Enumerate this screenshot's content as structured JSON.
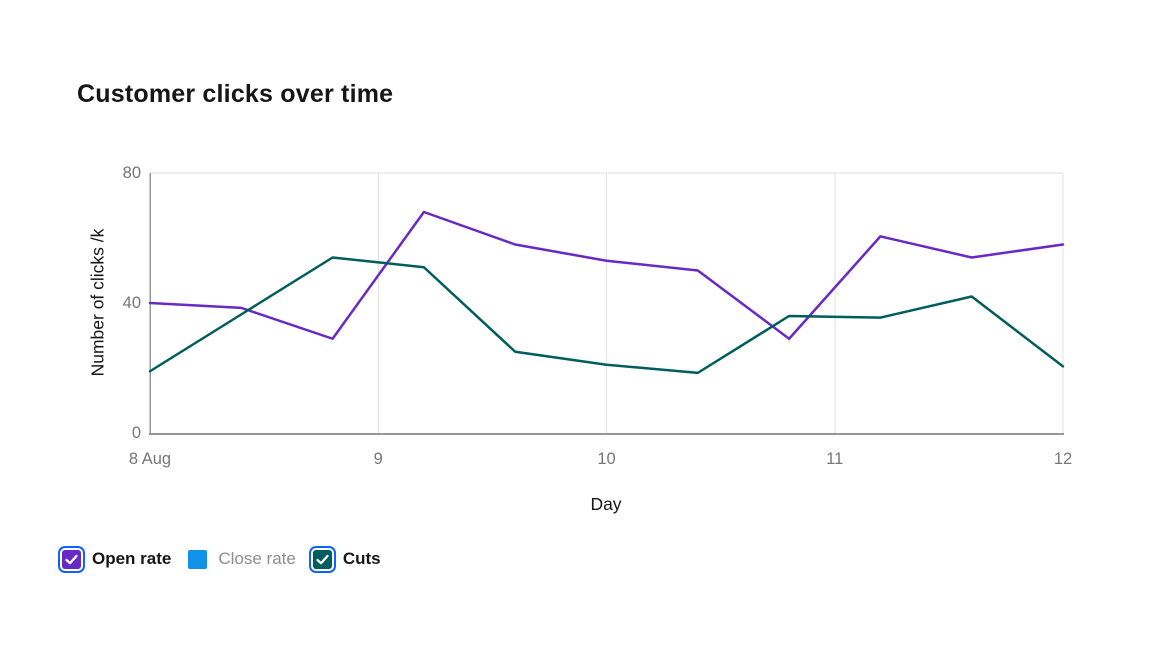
{
  "chart_data": {
    "type": "line",
    "title": "Customer clicks over time",
    "xlabel": "Day",
    "ylabel": "Number of clicks /k",
    "x": [
      8,
      8.4,
      8.8,
      9.2,
      9.6,
      10,
      10.4,
      10.8,
      11.2,
      11.6,
      12
    ],
    "x_tick_labels": [
      "8 Aug",
      "9",
      "10",
      "11",
      "12"
    ],
    "x_tick_values": [
      8,
      9,
      10,
      11,
      12
    ],
    "y_ticks": [
      0,
      40,
      80
    ],
    "xlim": [
      8,
      12
    ],
    "ylim": [
      0,
      80
    ],
    "grid": {
      "vertical": true,
      "horizontal": false,
      "top_border": true
    },
    "legend_position": "bottom-left",
    "series": [
      {
        "name": "Open rate",
        "color": "#6929c4",
        "visible": true,
        "values": [
          40,
          38.5,
          29,
          68,
          58,
          53,
          50,
          29,
          60.5,
          54,
          58
        ]
      },
      {
        "name": "Close rate",
        "color": "#1192e8",
        "visible": false,
        "values": []
      },
      {
        "name": "Cuts",
        "color": "#005d5d",
        "visible": true,
        "values": [
          19,
          36.5,
          54,
          51,
          25,
          21,
          18.5,
          36,
          35.5,
          42,
          20.5
        ]
      }
    ]
  },
  "legend": {
    "items": [
      {
        "label": "Open rate",
        "color": "#6929c4",
        "checked": true
      },
      {
        "label": "Close rate",
        "color": "#1192e8",
        "checked": false
      },
      {
        "label": "Cuts",
        "color": "#005d5d",
        "checked": true
      }
    ]
  },
  "colors": {
    "focus_ring": "#0f62fe",
    "grid": "#e0e0e0",
    "axis": "#979797",
    "tick_label": "#767676",
    "axis_title": "#161616",
    "title": "#161616",
    "inactive_label": "#8d8d8d",
    "background": "#ffffff"
  }
}
